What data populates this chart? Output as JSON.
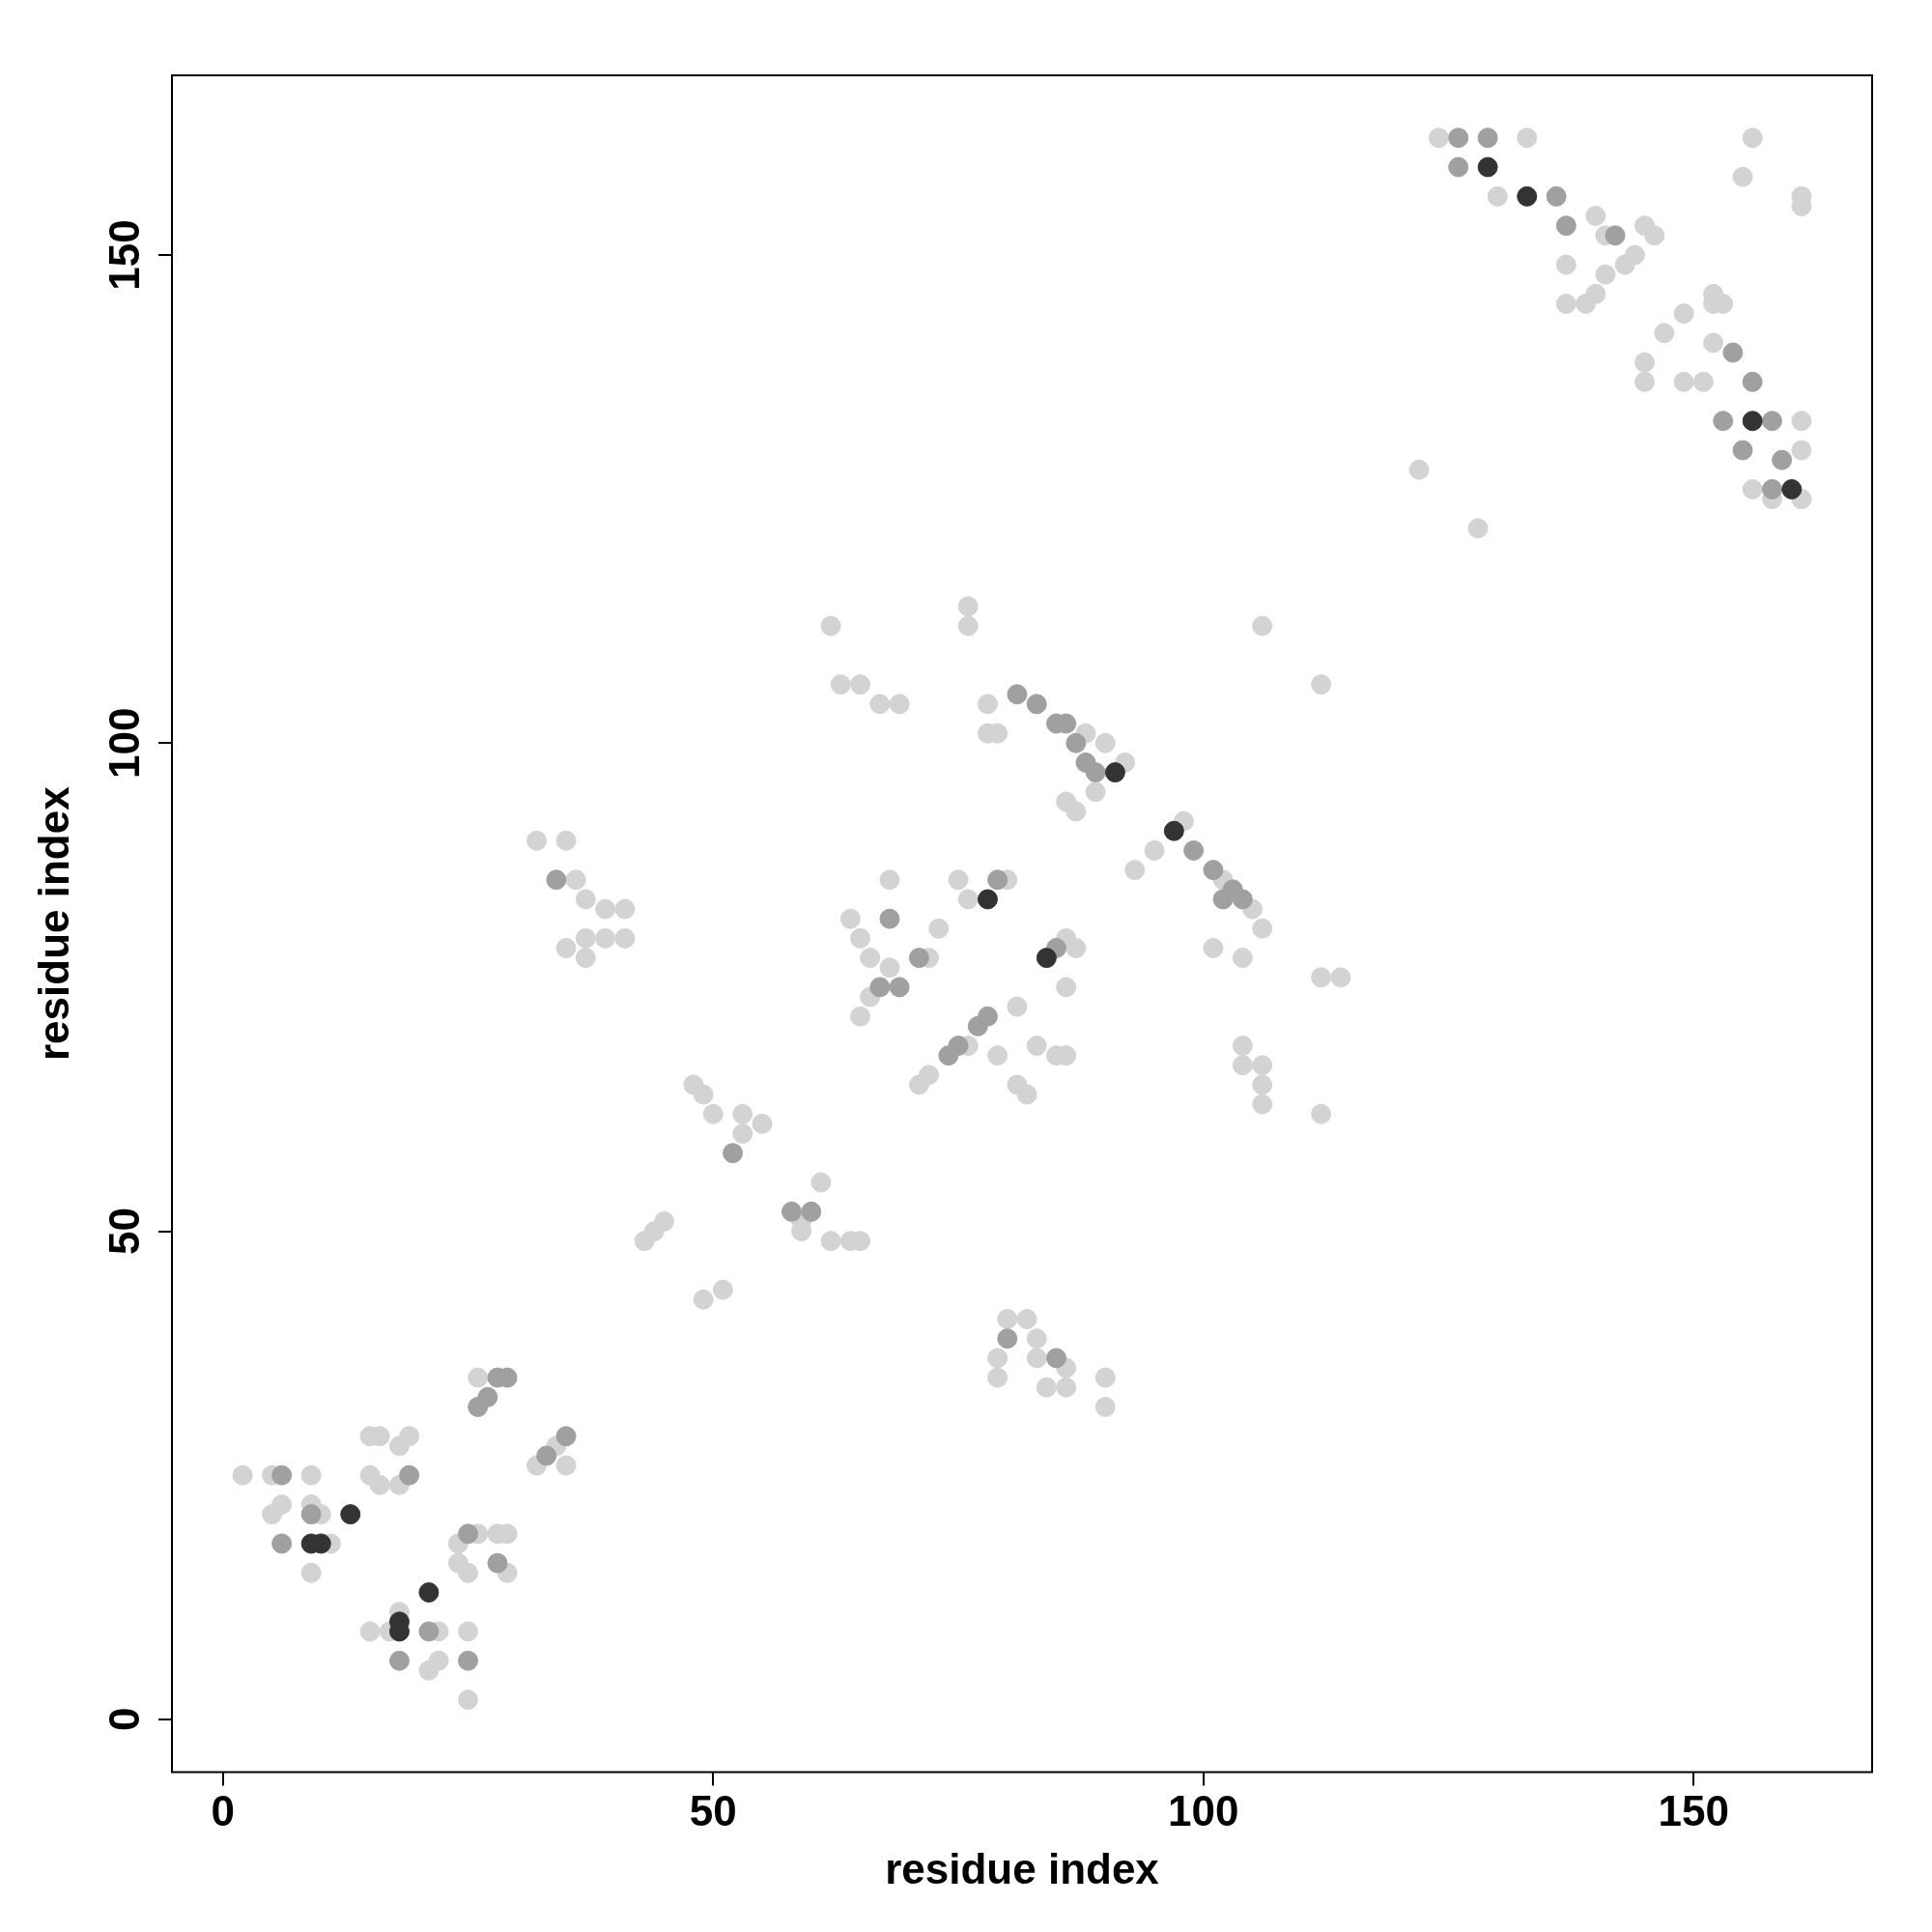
{
  "chart_data": {
    "type": "scatter",
    "xlabel": "residue index",
    "ylabel": "residue index",
    "xlim": [
      -5.2,
      168.2
    ],
    "ylim": [
      -5.4,
      168.4
    ],
    "xticks": [
      0,
      50,
      100,
      150
    ],
    "yticks": [
      0,
      50,
      100,
      150
    ],
    "grid": false,
    "legend": false,
    "marker": "circle",
    "series": [
      {
        "color": "#d3d3d3",
        "x": [
          2,
          5,
          9,
          5,
          6,
          9,
          10,
          11,
          9,
          15,
          16,
          15,
          16,
          18,
          19,
          18,
          15,
          17,
          18,
          22,
          21,
          22,
          25,
          25,
          24,
          24,
          25,
          26,
          28,
          29,
          29,
          26,
          32,
          35,
          34,
          32,
          35,
          36,
          37,
          37,
          39,
          41,
          39,
          41,
          35,
          37,
          43,
          44,
          45,
          49,
          51,
          48,
          49,
          50,
          53,
          55,
          53,
          59,
          61,
          59,
          62,
          64,
          65,
          62,
          63,
          65,
          67,
          69,
          64,
          65,
          66,
          68,
          68,
          65,
          66,
          72,
          73,
          71,
          72,
          76,
          81,
          79,
          81,
          82,
          83,
          85,
          86,
          75,
          76,
          80,
          76,
          76,
          86,
          87,
          86,
          78,
          78,
          79,
          92,
          90,
          88,
          86,
          87,
          89,
          93,
          95,
          98,
          102,
          105,
          106,
          101,
          104,
          104,
          104,
          106,
          106,
          106,
          112,
          112,
          114,
          106,
          112,
          79,
          80,
          82,
          83,
          83,
          86,
          84,
          86,
          90,
          90,
          79,
          122,
          128,
          124,
          130,
          133,
          140,
          141,
          137,
          137,
          139,
          140,
          141,
          143,
          145,
          146,
          144,
          152,
          153,
          152,
          149,
          147,
          145,
          145,
          149,
          151,
          152,
          161,
          156,
          158,
          161,
          161,
          161,
          155,
          156,
          161,
          161
        ],
        "values": [
          25,
          25,
          25,
          21,
          22,
          22,
          21,
          18,
          15,
          29,
          29,
          25,
          24,
          24,
          29,
          28,
          9,
          9,
          11,
          9,
          5,
          6,
          9,
          2,
          18,
          16,
          15,
          19,
          19,
          19,
          15,
          35,
          26,
          26,
          28,
          90,
          90,
          86,
          84,
          80,
          80,
          80,
          83,
          83,
          79,
          78,
          49,
          50,
          51,
          43,
          44,
          65,
          64,
          62,
          62,
          61,
          60,
          51,
          55,
          50,
          49,
          49,
          49,
          112,
          106,
          106,
          104,
          104,
          82,
          80,
          78,
          86,
          77,
          72,
          74,
          78,
          81,
          65,
          66,
          69,
          73,
          68,
          65,
          64,
          69,
          68,
          68,
          86,
          84,
          86,
          114,
          112,
          80,
          79,
          75,
          104,
          101,
          101,
          98,
          100,
          101,
          94,
          93,
          95,
          87,
          89,
          92,
          86,
          83,
          81,
          79,
          78,
          69,
          67,
          67,
          65,
          63,
          62,
          76,
          76,
          112,
          106,
          37,
          41,
          41,
          39,
          37,
          36,
          34,
          34,
          35,
          32,
          35,
          128,
          122,
          162,
          156,
          162,
          154,
          152,
          149,
          145,
          145,
          146,
          148,
          149,
          153,
          152,
          150,
          145,
          145,
          146,
          144,
          142,
          139,
          137,
          137,
          137,
          141,
          133,
          126,
          125,
          125,
          130,
          125,
          158,
          162,
          155,
          156
        ]
      },
      {
        "color": "#a0a0a0",
        "x": [
          6,
          9,
          6,
          19,
          18,
          21,
          25,
          25,
          28,
          27,
          26,
          28,
          29,
          33,
          35,
          34,
          52,
          58,
          60,
          68,
          69,
          67,
          71,
          74,
          75,
          77,
          78,
          79,
          85,
          86,
          81,
          83,
          85,
          87,
          88,
          89,
          99,
          101,
          103,
          104,
          102,
          80,
          85,
          126,
          126,
          129,
          136,
          137,
          142,
          154,
          156,
          153,
          158,
          155,
          158,
          159
        ],
        "values": [
          25,
          21,
          18,
          25,
          6,
          9,
          6,
          19,
          16,
          33,
          32,
          35,
          35,
          27,
          29,
          86,
          58,
          52,
          52,
          82,
          75,
          75,
          78,
          68,
          69,
          71,
          72,
          86,
          79,
          102,
          105,
          104,
          102,
          100,
          98,
          97,
          89,
          87,
          85,
          84,
          84,
          39,
          37,
          162,
          159,
          162,
          156,
          153,
          152,
          140,
          137,
          133,
          133,
          130,
          126,
          129
        ]
      },
      {
        "color": "#333333",
        "x": [
          9,
          10,
          13,
          18,
          18,
          21,
          78,
          84,
          91,
          97,
          129,
          133,
          156,
          160
        ],
        "values": [
          18,
          18,
          21,
          9,
          10,
          13,
          84,
          78,
          97,
          91,
          159,
          156,
          133,
          126
        ]
      }
    ]
  }
}
